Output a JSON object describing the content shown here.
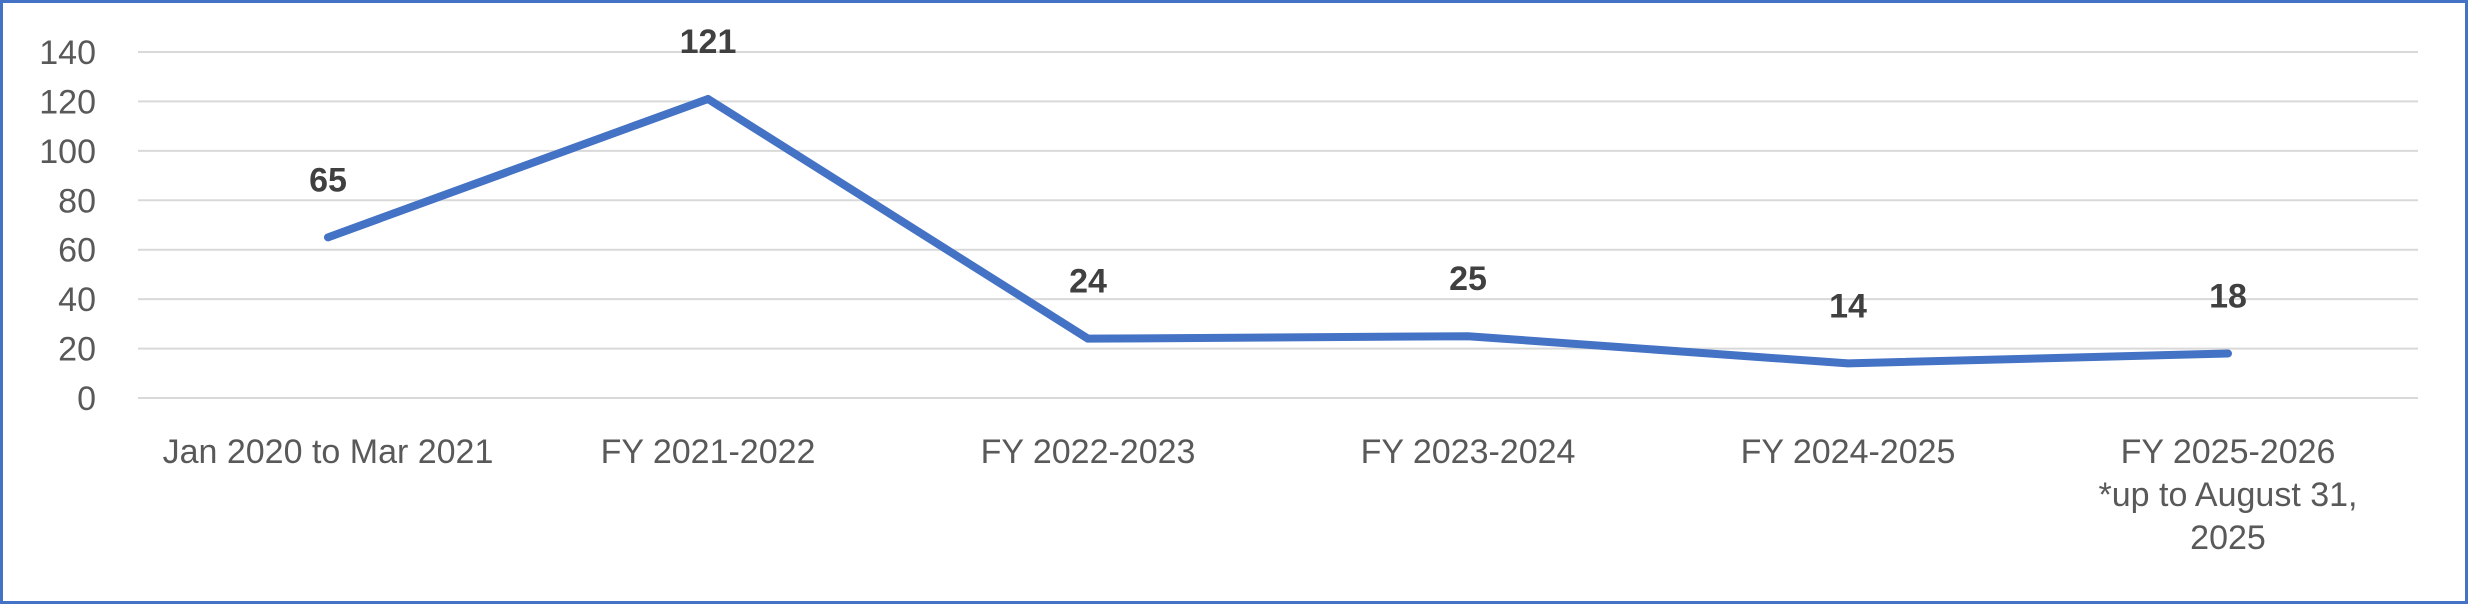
{
  "chart_data": {
    "type": "line",
    "title": "",
    "xlabel": "",
    "ylabel": "",
    "categories": [
      [
        "Jan 2020 to Mar 2021"
      ],
      [
        "FY 2021-2022"
      ],
      [
        "FY 2022-2023"
      ],
      [
        "FY 2023-2024"
      ],
      [
        "FY 2024-2025"
      ],
      [
        "FY 2025-2026",
        "*up to August 31,",
        "2025"
      ]
    ],
    "series": [
      {
        "values": [
          65,
          121,
          24,
          25,
          14,
          18
        ],
        "color": "#4472C4"
      }
    ],
    "data_labels": [
      "65",
      "121",
      "24",
      "25",
      "14",
      "18"
    ],
    "yticks": [
      0,
      20,
      40,
      60,
      80,
      100,
      120,
      140
    ],
    "ylim": [
      0,
      140
    ],
    "grid": true,
    "legend": "none"
  }
}
